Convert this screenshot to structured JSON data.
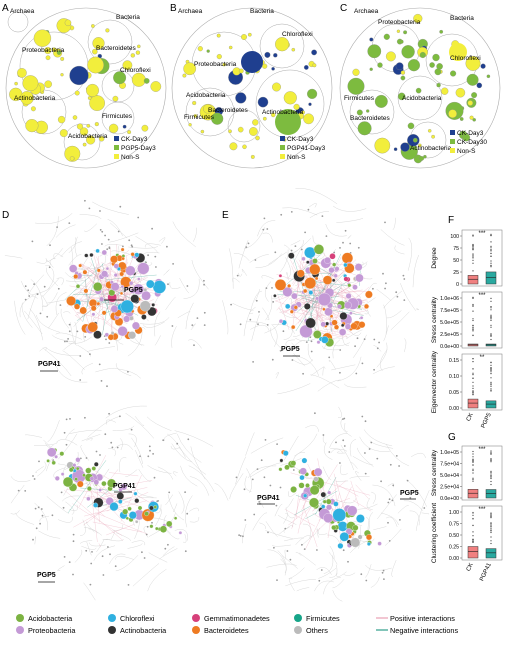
{
  "colors": {
    "ck": "#1f3f8f",
    "treat": "#7dbb3f",
    "nons": "#f2ee3c",
    "acido": "#7cb342",
    "chloro": "#2fb0e0",
    "gemma": "#d6407a",
    "firmi": "#17a589",
    "proteo": "#c49ad6",
    "actino": "#333333",
    "bactero": "#ee7b22",
    "others": "#bbbbbb",
    "pos": "#e8a0b4",
    "neg": "#2e9e8a",
    "ck_box": "#f08080",
    "pgp_box": "#2aa9a0"
  },
  "panels": {
    "a": "A",
    "b": "B",
    "c": "C",
    "d": "D",
    "e": "E",
    "f": "F",
    "g": "G"
  },
  "panelA": {
    "labels": {
      "archaea": "Archaea",
      "bacteria": "Bacteria",
      "proteo": "Proteobacteria",
      "bactero": "Bacteroidetes",
      "chloro": "Chloroflexi",
      "actino": "Actinobacteria",
      "firmi": "Firmicutes",
      "acido": "Acidobacteria"
    },
    "legend": [
      "CK-Day3",
      "PGP5-Day3",
      "Non-S"
    ]
  },
  "panelB": {
    "labels": {
      "archaea": "Archaea",
      "bacteria": "Bacteria",
      "chloro": "Chloroflexi",
      "proteo": "Proteobacteria",
      "acido": "Acidobacteria",
      "bactero": "Bacteroidetes",
      "firmi": "Firmicutes",
      "actino": "Actinobacteria"
    },
    "legend": [
      "CK-Day3",
      "PGP41-Day3",
      "Non-S"
    ]
  },
  "panelC": {
    "labels": {
      "archaea": "Archaea",
      "proteo": "Proteobacteria",
      "bacteria": "Bacteria",
      "chloro": "Chloroflexi",
      "firmi": "Firmicutes",
      "acido": "Acidobacteria",
      "bactero": "Bacteroidetes",
      "actino": "Actinobacteria"
    },
    "legend": [
      "CK-Day3",
      "CK-Day30",
      "Non-S"
    ]
  },
  "networks": {
    "d_top": {
      "label1": "PGP5",
      "label2": "PGP41"
    },
    "e_top": {
      "label1": "PGP5"
    },
    "d_bottom": {
      "label1": "PGP41",
      "label2": "PGP5"
    },
    "e_bottom": {
      "label1": "PGP41",
      "label2": "PGP5"
    }
  },
  "panelF": {
    "plots": [
      {
        "ylabel": "Degree",
        "ticks": [
          "0",
          "25",
          "50",
          "75",
          "100"
        ],
        "sig": "***"
      },
      {
        "ylabel": "Stress centrality",
        "ticks": [
          "0.0e+00",
          "2.5e+05",
          "5.0e+05",
          "7.5e+05",
          "1.0e+06"
        ],
        "sig": "***"
      },
      {
        "ylabel": "Eigenvector centrality",
        "ticks": [
          "0.00",
          "0.05",
          "0.10",
          "0.15"
        ],
        "sig": "**"
      }
    ],
    "xcats": [
      "CK",
      "PGP5"
    ]
  },
  "panelG": {
    "plots": [
      {
        "ylabel": "Stress centrality",
        "ticks": [
          "0.0e+00",
          "2.5e+04",
          "5.0e+04",
          "7.5e+04",
          "1.0e+05"
        ],
        "sig": "***"
      },
      {
        "ylabel": "Clustering coefficient",
        "ticks": [
          "0.00",
          "0.25",
          "0.50",
          "0.75",
          "1.00"
        ],
        "sig": "***"
      }
    ],
    "xcats": [
      "CK",
      "PGP41"
    ]
  },
  "legend": {
    "items": [
      {
        "label": "Acidobacteria",
        "color": "acido",
        "kind": "dot"
      },
      {
        "label": "Chloroflexi",
        "color": "chloro",
        "kind": "dot"
      },
      {
        "label": "Gemmatimonadetes",
        "color": "gemma",
        "kind": "dot"
      },
      {
        "label": "Firmicutes",
        "color": "firmi",
        "kind": "dot"
      },
      {
        "label": "Positive interactions",
        "color": "pos",
        "kind": "line"
      },
      {
        "label": "Proteobacteria",
        "color": "proteo",
        "kind": "dot"
      },
      {
        "label": "Actinobacteria",
        "color": "actino",
        "kind": "dot"
      },
      {
        "label": "Bacteroidetes",
        "color": "bactero",
        "kind": "dot"
      },
      {
        "label": "Others",
        "color": "others",
        "kind": "dot"
      },
      {
        "label": "Negative interactions",
        "color": "neg",
        "kind": "line"
      }
    ]
  }
}
